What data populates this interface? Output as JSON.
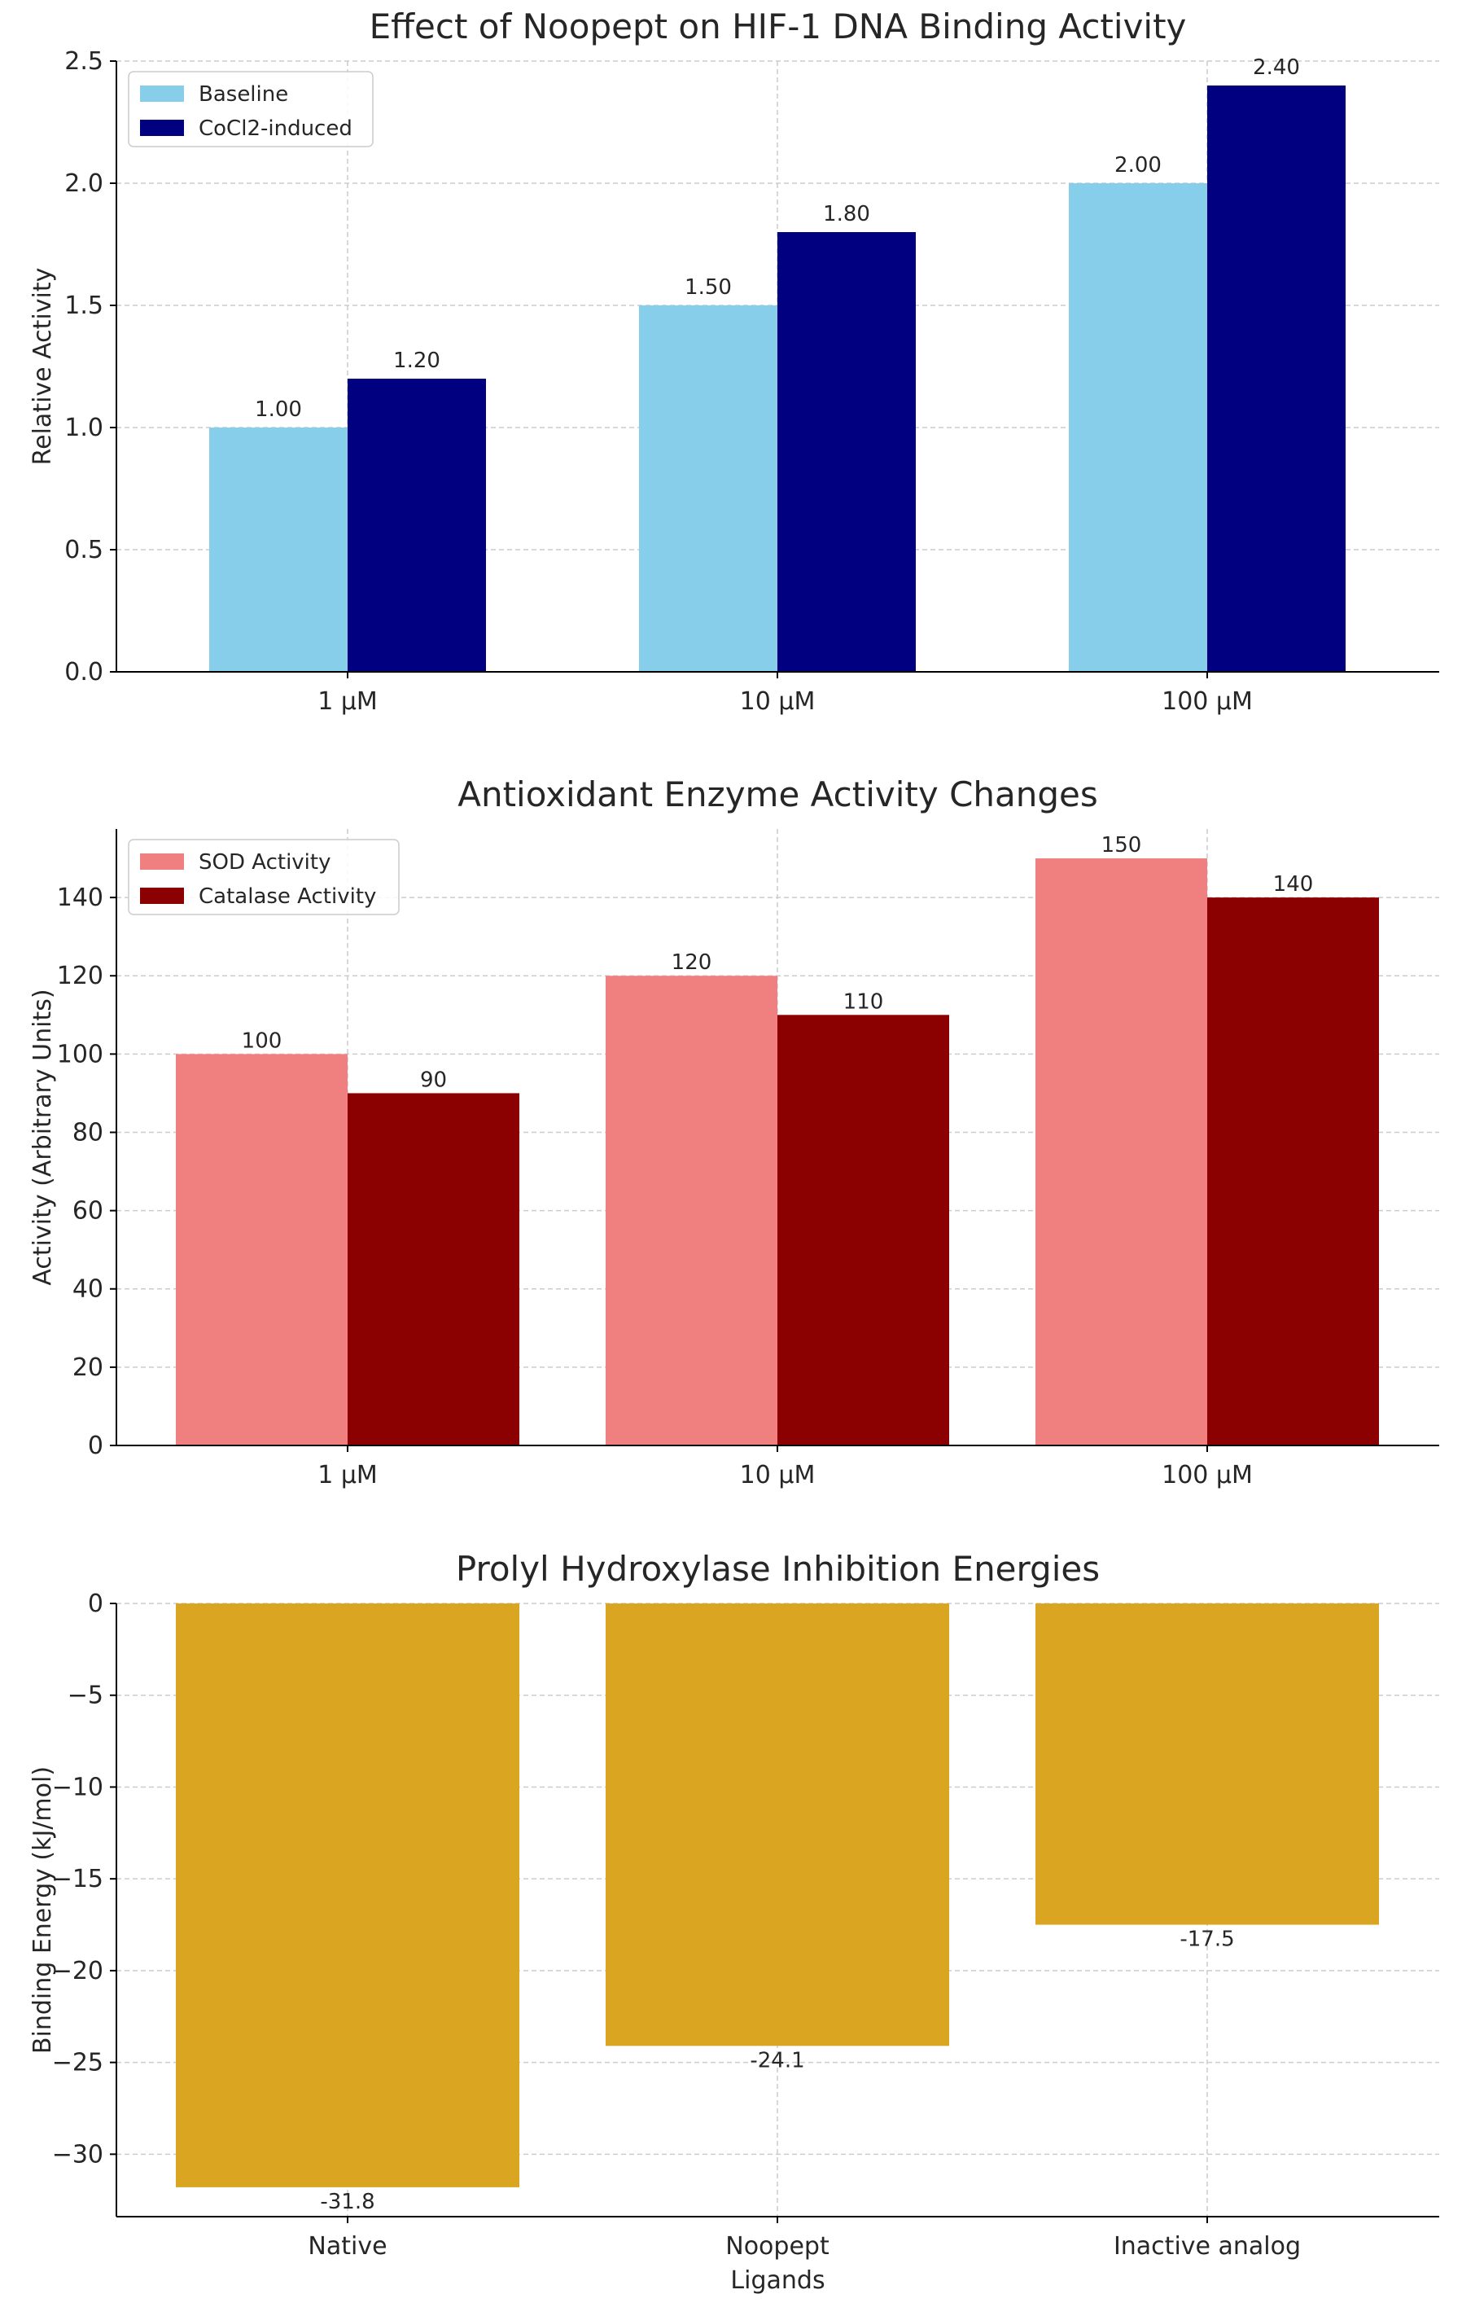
{
  "chart_data": [
    {
      "type": "bar",
      "title": "Effect of Noopept on HIF-1 DNA Binding Activity",
      "xlabel": "",
      "ylabel": "Relative Activity",
      "categories": [
        "1 μM",
        "10 μM",
        "100 μM"
      ],
      "ylim": [
        0,
        2.5
      ],
      "yticks": [
        0.0,
        0.5,
        1.0,
        1.5,
        2.0,
        2.5
      ],
      "ytick_labels": [
        "0.0",
        "0.5",
        "1.0",
        "1.5",
        "2.0",
        "2.5"
      ],
      "grid": true,
      "legend_position": "top-left",
      "series": [
        {
          "name": "Baseline",
          "color": "#87CEEB",
          "values": [
            1.0,
            1.5,
            2.0
          ],
          "labels": [
            "1.00",
            "1.50",
            "2.00"
          ]
        },
        {
          "name": "CoCl2-induced",
          "color": "#000080",
          "values": [
            1.2,
            1.8,
            2.4
          ],
          "labels": [
            "1.20",
            "1.80",
            "2.40"
          ]
        }
      ]
    },
    {
      "type": "bar",
      "title": "Antioxidant Enzyme Activity Changes",
      "xlabel": "",
      "ylabel": "Activity (Arbitrary Units)",
      "categories": [
        "1 μM",
        "10 μM",
        "100 μM"
      ],
      "ylim": [
        0,
        157.5
      ],
      "yticks": [
        0,
        20,
        40,
        60,
        80,
        100,
        120,
        140
      ],
      "ytick_labels": [
        "0",
        "20",
        "40",
        "60",
        "80",
        "100",
        "120",
        "140"
      ],
      "grid": true,
      "legend_position": "top-left",
      "series": [
        {
          "name": "SOD Activity",
          "color": "#F08080",
          "values": [
            100,
            120,
            150
          ],
          "labels": [
            "100",
            "120",
            "150"
          ]
        },
        {
          "name": "Catalase Activity",
          "color": "#8B0000",
          "values": [
            90,
            110,
            140
          ],
          "labels": [
            "90",
            "110",
            "140"
          ]
        }
      ]
    },
    {
      "type": "bar",
      "title": "Prolyl Hydroxylase Inhibition Energies",
      "xlabel": "Ligands",
      "ylabel": "Binding Energy (kJ/mol)",
      "categories": [
        "Native",
        "Noopept",
        "Inactive analog"
      ],
      "ylim": [
        -33.4,
        0
      ],
      "yticks": [
        0,
        -5,
        -10,
        -15,
        -20,
        -25,
        -30
      ],
      "ytick_labels": [
        "0",
        "−5",
        "−10",
        "−15",
        "−20",
        "−25",
        "−30"
      ],
      "grid": true,
      "series": [
        {
          "color": "#DAA520",
          "values": [
            -31.8,
            -24.1,
            -17.5
          ],
          "labels": [
            "-31.8",
            "-24.1",
            "-17.5"
          ]
        }
      ]
    }
  ]
}
